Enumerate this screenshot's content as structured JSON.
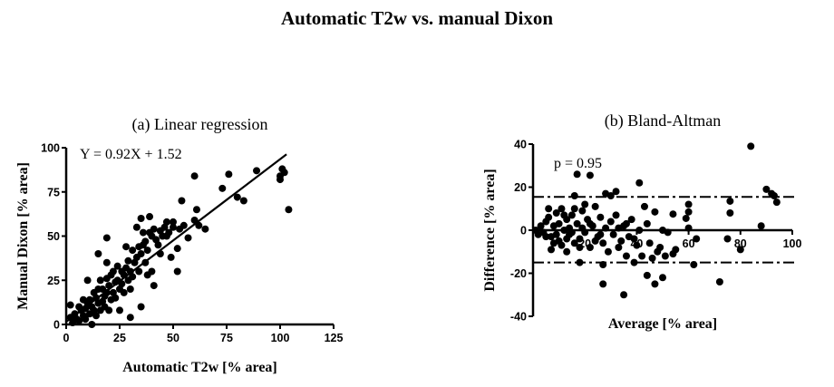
{
  "title": "Automatic T2w vs. manual Dixon",
  "chart_data": [
    {
      "type": "scatter",
      "title": "(a) Linear regression",
      "xlabel": "Automatic T2w [% area]",
      "ylabel": "Manual Dixon [% area]",
      "xlim": [
        0,
        125
      ],
      "ylim": [
        0,
        100
      ],
      "xticks": [
        "0",
        "25",
        "50",
        "75",
        "100",
        "125"
      ],
      "yticks": [
        "0",
        "25",
        "50",
        "75",
        "100"
      ],
      "annotation": "Y = 0.92X + 1.52",
      "regression": {
        "slope": 0.92,
        "intercept": 1.52,
        "x_range": [
          0,
          103
        ]
      },
      "grid": false,
      "marker_color": "#000000",
      "points": [
        [
          60,
          84
        ],
        [
          76,
          85
        ],
        [
          89,
          87
        ],
        [
          101,
          88
        ],
        [
          102,
          86
        ],
        [
          100,
          82
        ],
        [
          100,
          84
        ],
        [
          104,
          65
        ],
        [
          73,
          77
        ],
        [
          80,
          72
        ],
        [
          83,
          70
        ],
        [
          61,
          65
        ],
        [
          54,
          70
        ],
        [
          60,
          59
        ],
        [
          62,
          56
        ],
        [
          65,
          54
        ],
        [
          57,
          49
        ],
        [
          52,
          43
        ],
        [
          52,
          30
        ],
        [
          49,
          38
        ],
        [
          41,
          22
        ],
        [
          35,
          10
        ],
        [
          30,
          4
        ],
        [
          35,
          60
        ],
        [
          39,
          61
        ],
        [
          19,
          49
        ],
        [
          15,
          40
        ],
        [
          19,
          35
        ],
        [
          10,
          25
        ],
        [
          2,
          11
        ],
        [
          12,
          0
        ],
        [
          5,
          3
        ],
        [
          7,
          8
        ],
        [
          8,
          5
        ],
        [
          10,
          12
        ],
        [
          12,
          10
        ],
        [
          14,
          15
        ],
        [
          15,
          12
        ],
        [
          17,
          20
        ],
        [
          18,
          16
        ],
        [
          20,
          22
        ],
        [
          22,
          18
        ],
        [
          24,
          25
        ],
        [
          25,
          20
        ],
        [
          27,
          28
        ],
        [
          28,
          32
        ],
        [
          30,
          30
        ],
        [
          32,
          35
        ],
        [
          33,
          38
        ],
        [
          35,
          40
        ],
        [
          36,
          45
        ],
        [
          38,
          42
        ],
        [
          40,
          50
        ],
        [
          42,
          48
        ],
        [
          44,
          53
        ],
        [
          46,
          55
        ],
        [
          48,
          52
        ],
        [
          50,
          58
        ],
        [
          4,
          6
        ],
        [
          6,
          2
        ],
        [
          9,
          9
        ],
        [
          11,
          6
        ],
        [
          13,
          18
        ],
        [
          16,
          25
        ],
        [
          21,
          28
        ],
        [
          23,
          15
        ],
        [
          26,
          23
        ],
        [
          29,
          25
        ],
        [
          31,
          42
        ],
        [
          34,
          30
        ],
        [
          37,
          35
        ],
        [
          39,
          52
        ],
        [
          43,
          45
        ],
        [
          45,
          50
        ],
        [
          47,
          58
        ],
        [
          3,
          1
        ],
        [
          8,
          14
        ],
        [
          18,
          10
        ],
        [
          20,
          8
        ],
        [
          25,
          8
        ],
        [
          28,
          44
        ],
        [
          33,
          55
        ],
        [
          36,
          52
        ],
        [
          24,
          33
        ],
        [
          14,
          5
        ],
        [
          16,
          8
        ],
        [
          19,
          26
        ],
        [
          22,
          30
        ],
        [
          27,
          18
        ],
        [
          30,
          20
        ],
        [
          38,
          28
        ],
        [
          40,
          30
        ],
        [
          2,
          4
        ],
        [
          6,
          10
        ],
        [
          9,
          3
        ],
        [
          11,
          14
        ],
        [
          13,
          8
        ],
        [
          15,
          20
        ],
        [
          17,
          13
        ],
        [
          19,
          18
        ],
        [
          21,
          14
        ],
        [
          23,
          24
        ],
        [
          26,
          30
        ],
        [
          29,
          36
        ],
        [
          31,
          27
        ],
        [
          34,
          44
        ],
        [
          37,
          47
        ],
        [
          41,
          54
        ],
        [
          44,
          40
        ],
        [
          47,
          50
        ],
        [
          50,
          55
        ],
        [
          53,
          54
        ],
        [
          55,
          56
        ]
      ]
    },
    {
      "type": "scatter",
      "title": "(b) Bland-Altman",
      "xlabel": "Average [% area]",
      "ylabel": "Difference [% area]",
      "xlim": [
        0,
        100
      ],
      "ylim": [
        -40,
        40
      ],
      "xticks": [
        "20",
        "40",
        "60",
        "80",
        "100"
      ],
      "yticks": [
        "-40",
        "-20",
        "0",
        "20",
        "40"
      ],
      "annotation": "p = 0.95",
      "bias": 0,
      "limits_of_agreement": [
        -15,
        15.5
      ],
      "grid": false,
      "marker_color": "#000000",
      "points": [
        [
          84,
          39
        ],
        [
          17,
          26
        ],
        [
          22,
          25.5
        ],
        [
          41,
          22
        ],
        [
          90,
          19
        ],
        [
          92,
          17
        ],
        [
          93,
          16
        ],
        [
          94,
          13
        ],
        [
          88,
          2
        ],
        [
          76,
          13.5
        ],
        [
          76,
          8
        ],
        [
          80,
          -9
        ],
        [
          75,
          -4
        ],
        [
          72,
          -24
        ],
        [
          62,
          -16
        ],
        [
          63,
          -4
        ],
        [
          60,
          12
        ],
        [
          59,
          5.5
        ],
        [
          60,
          8.5
        ],
        [
          60,
          1
        ],
        [
          54,
          7.5
        ],
        [
          43,
          11
        ],
        [
          47,
          8.5
        ],
        [
          50,
          -22
        ],
        [
          47,
          -25
        ],
        [
          44,
          -21
        ],
        [
          35,
          -30
        ],
        [
          27,
          -25
        ],
        [
          27,
          -16
        ],
        [
          18,
          -15
        ],
        [
          7,
          -9
        ],
        [
          13,
          -10
        ],
        [
          32,
          18
        ],
        [
          28,
          17
        ],
        [
          30,
          16
        ],
        [
          16,
          16
        ],
        [
          55,
          -9
        ],
        [
          54,
          -11
        ],
        [
          52,
          -1
        ],
        [
          50,
          0
        ],
        [
          44,
          3
        ],
        [
          39,
          -15
        ],
        [
          46,
          -13
        ],
        [
          48,
          -10
        ],
        [
          42,
          -12
        ],
        [
          36,
          -12
        ],
        [
          33,
          -8
        ],
        [
          3,
          2
        ],
        [
          4,
          -1
        ],
        [
          5,
          4
        ],
        [
          6,
          6
        ],
        [
          7,
          -3
        ],
        [
          8,
          2
        ],
        [
          9,
          8
        ],
        [
          10,
          -5
        ],
        [
          11,
          10
        ],
        [
          12,
          0
        ],
        [
          13,
          5
        ],
        [
          14,
          -2
        ],
        [
          15,
          7
        ],
        [
          16,
          -6
        ],
        [
          17,
          3
        ],
        [
          18,
          -4
        ],
        [
          19,
          9
        ],
        [
          20,
          -1
        ],
        [
          21,
          5
        ],
        [
          22,
          -8
        ],
        [
          23,
          2
        ],
        [
          24,
          11
        ],
        [
          25,
          -3
        ],
        [
          26,
          6
        ],
        [
          27,
          -6
        ],
        [
          28,
          1
        ],
        [
          29,
          -10
        ],
        [
          30,
          4
        ],
        [
          31,
          -2
        ],
        [
          32,
          7
        ],
        [
          34,
          -5
        ],
        [
          35,
          2
        ],
        [
          37,
          -3
        ],
        [
          38,
          5
        ],
        [
          40,
          -7
        ],
        [
          41,
          0
        ],
        [
          5,
          -3
        ],
        [
          8,
          -6
        ],
        [
          10,
          3
        ],
        [
          12,
          7
        ],
        [
          14,
          1
        ],
        [
          16,
          10
        ],
        [
          18,
          -8
        ],
        [
          20,
          12
        ],
        [
          22,
          3
        ],
        [
          24,
          -5
        ],
        [
          6,
          10
        ],
        [
          9,
          -2
        ],
        [
          11,
          -7
        ],
        [
          13,
          -4
        ],
        [
          1,
          0
        ],
        [
          2,
          -2
        ],
        [
          15,
          -1
        ],
        [
          19,
          1
        ],
        [
          26,
          -2
        ],
        [
          33,
          1
        ],
        [
          36,
          3
        ],
        [
          39,
          -4
        ],
        [
          45,
          -6
        ],
        [
          49,
          -8
        ],
        [
          51,
          -12
        ]
      ]
    }
  ]
}
